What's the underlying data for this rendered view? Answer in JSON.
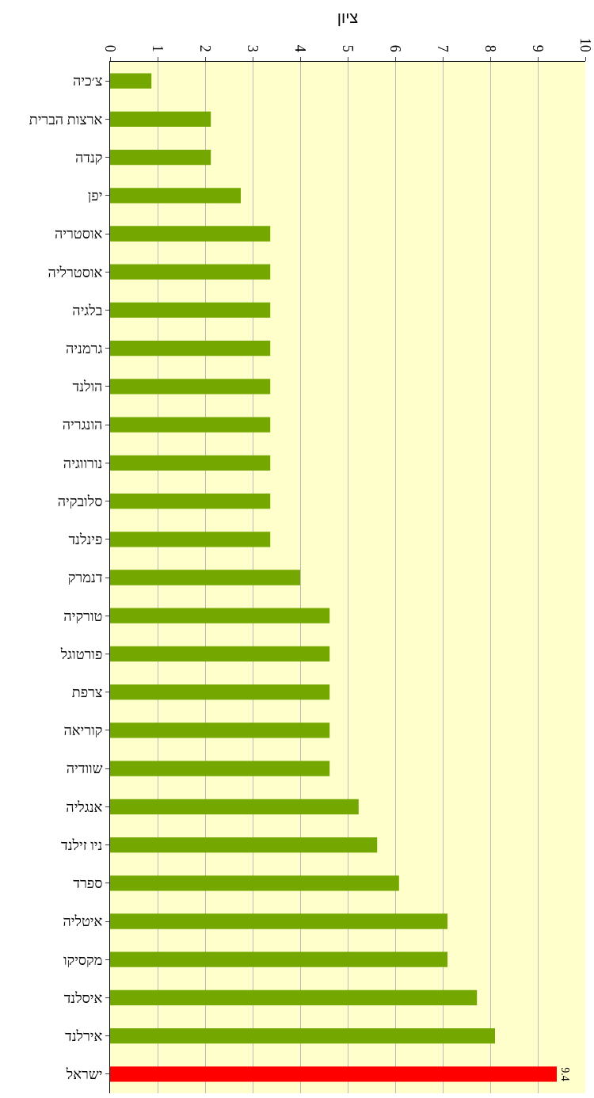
{
  "chart_data": {
    "type": "bar",
    "orientation": "horizontal",
    "xlabel": "ציון",
    "categories": [
      "צ׳כיה",
      "ארצות הברית",
      "קנדה",
      "יפן",
      "אוסטריה",
      "אוסטרליה",
      "בלגיה",
      "גרמניה",
      "הולנד",
      "הונגריה",
      "נורווגיה",
      "סלובקיה",
      "פינלנד",
      "דנמרק",
      "טורקיה",
      "פורטוגל",
      "צרפת",
      "קוריאה",
      "שוודיה",
      "אנגליה",
      "ניו זילנד",
      "ספרד",
      "איטליה",
      "מקסיקו",
      "איסלנד",
      "אירלנד",
      "ישראל"
    ],
    "values": [
      0.87,
      2.12,
      2.12,
      2.75,
      3.37,
      3.37,
      3.37,
      3.37,
      3.37,
      3.37,
      3.37,
      3.37,
      3.37,
      4.0,
      4.62,
      4.62,
      4.62,
      4.62,
      4.62,
      5.23,
      5.62,
      6.08,
      7.1,
      7.1,
      7.72,
      8.1,
      9.4
    ],
    "colors": [
      "#74a800",
      "#74a800",
      "#74a800",
      "#74a800",
      "#74a800",
      "#74a800",
      "#74a800",
      "#74a800",
      "#74a800",
      "#74a800",
      "#74a800",
      "#74a800",
      "#74a800",
      "#74a800",
      "#74a800",
      "#74a800",
      "#74a800",
      "#74a800",
      "#74a800",
      "#74a800",
      "#74a800",
      "#74a800",
      "#74a800",
      "#74a800",
      "#74a800",
      "#74a800",
      "#ff0000"
    ],
    "value_labels": [
      null,
      null,
      null,
      null,
      null,
      null,
      null,
      null,
      null,
      null,
      null,
      null,
      null,
      null,
      null,
      null,
      null,
      null,
      null,
      null,
      null,
      null,
      null,
      null,
      null,
      null,
      "9.4"
    ],
    "xlim": [
      0,
      10
    ],
    "xticks": [
      0,
      1,
      2,
      3,
      4,
      5,
      6,
      7,
      8,
      9,
      10
    ],
    "grid": "x"
  }
}
